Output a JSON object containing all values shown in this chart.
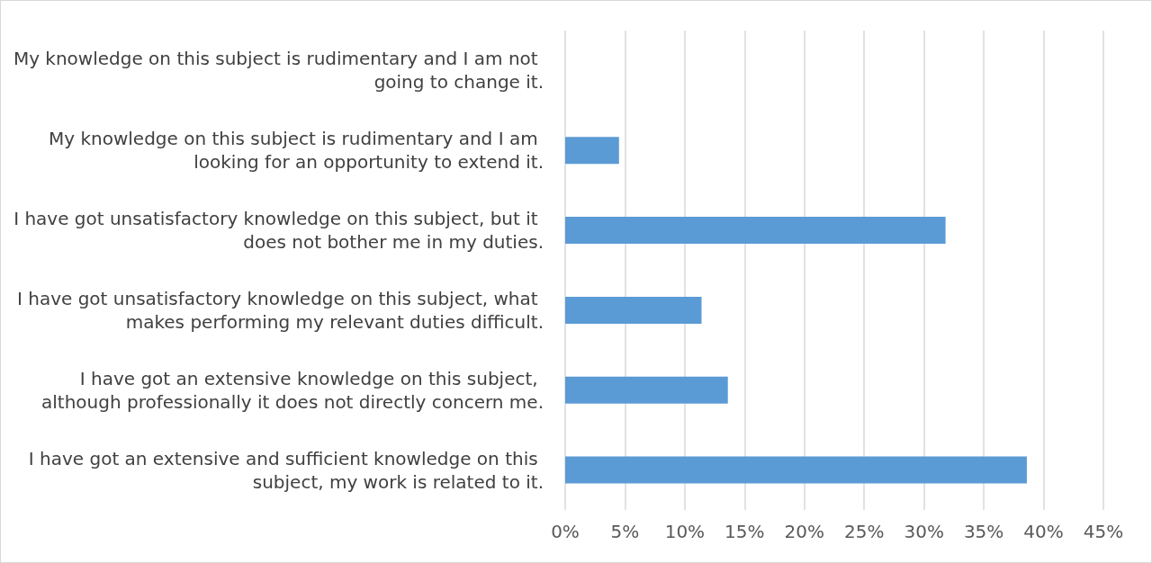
{
  "chart_data": {
    "type": "bar",
    "orientation": "horizontal",
    "categories": [
      "My knowledge on this subject is rudimentary and I am not going to change it.",
      "My knowledge on this subject is rudimentary and I am looking for an opportunity to extend it.",
      "I have got unsatisfactory knowledge on this subject, but it does not bother me in my duties.",
      "I have got unsatisfactory knowledge on this subject, what makes performing my relevant duties difficult.",
      "I have got an extensive knowledge on this subject, although professionally it does not directly concern me.",
      "I have got an extensive and sufficient knowledge on this subject, my work is related to it."
    ],
    "values": [
      0,
      4.5,
      31.8,
      11.4,
      13.6,
      38.6
    ],
    "color": "#5b9bd5",
    "xlim": [
      0,
      45
    ],
    "xticks": [
      {
        "value": 0,
        "label": "0%"
      },
      {
        "value": 5,
        "label": "5%"
      },
      {
        "value": 10,
        "label": "10%"
      },
      {
        "value": 15,
        "label": "15%"
      },
      {
        "value": 20,
        "label": "20%"
      },
      {
        "value": 25,
        "label": "25%"
      },
      {
        "value": 30,
        "label": "30%"
      },
      {
        "value": 35,
        "label": "35%"
      },
      {
        "value": 40,
        "label": "40%"
      },
      {
        "value": 45,
        "label": "45%"
      }
    ],
    "grid": "x"
  }
}
